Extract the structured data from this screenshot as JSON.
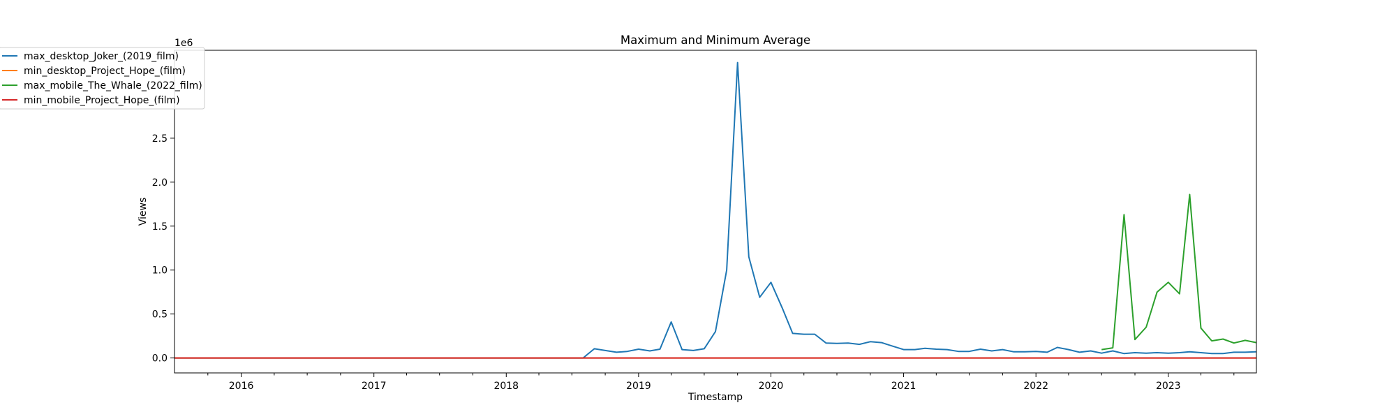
{
  "chart_data": {
    "type": "line",
    "title": "Maximum and Minimum Average",
    "xlabel": "Timestamp",
    "ylabel": "Views",
    "y_offset_label": "1e6",
    "xlim": [
      "2015-07-01",
      "2023-09-01"
    ],
    "ylim": [
      -170000,
      3500000
    ],
    "x_ticks": [
      "2016-01-01",
      "2017-01-01",
      "2018-01-01",
      "2019-01-01",
      "2020-01-01",
      "2021-01-01",
      "2022-01-01",
      "2023-01-01"
    ],
    "x_tick_labels": [
      "2016",
      "2017",
      "2018",
      "2019",
      "2020",
      "2021",
      "2022",
      "2023"
    ],
    "y_ticks": [
      0,
      500000,
      1000000,
      1500000,
      2000000,
      2500000
    ],
    "y_tick_labels": [
      "0.0",
      "0.5",
      "1.0",
      "1.5",
      "2.0",
      "2.5"
    ],
    "grid": false,
    "legend_position": "upper-left",
    "series": [
      {
        "name": "max_desktop_Joker_(2019_film)",
        "color": "#1f77b4",
        "points": [
          [
            "2015-07-01",
            0
          ],
          [
            "2016-01-01",
            0
          ],
          [
            "2017-01-01",
            0
          ],
          [
            "2018-01-01",
            0
          ],
          [
            "2018-08-01",
            0
          ],
          [
            "2018-09-01",
            105000
          ],
          [
            "2018-10-01",
            85000
          ],
          [
            "2018-11-01",
            65000
          ],
          [
            "2018-12-01",
            75000
          ],
          [
            "2019-01-01",
            100000
          ],
          [
            "2019-02-01",
            80000
          ],
          [
            "2019-03-01",
            100000
          ],
          [
            "2019-04-01",
            410000
          ],
          [
            "2019-05-01",
            95000
          ],
          [
            "2019-06-01",
            85000
          ],
          [
            "2019-07-01",
            105000
          ],
          [
            "2019-08-01",
            300000
          ],
          [
            "2019-09-01",
            1000000
          ],
          [
            "2019-10-01",
            3360000
          ],
          [
            "2019-11-01",
            1150000
          ],
          [
            "2019-12-01",
            690000
          ],
          [
            "2020-01-01",
            860000
          ],
          [
            "2020-02-01",
            570000
          ],
          [
            "2020-03-01",
            280000
          ],
          [
            "2020-04-01",
            270000
          ],
          [
            "2020-05-01",
            270000
          ],
          [
            "2020-06-01",
            170000
          ],
          [
            "2020-07-01",
            165000
          ],
          [
            "2020-08-01",
            170000
          ],
          [
            "2020-09-01",
            155000
          ],
          [
            "2020-10-01",
            185000
          ],
          [
            "2020-11-01",
            175000
          ],
          [
            "2020-12-01",
            135000
          ],
          [
            "2021-01-01",
            95000
          ],
          [
            "2021-02-01",
            95000
          ],
          [
            "2021-03-01",
            110000
          ],
          [
            "2021-04-01",
            100000
          ],
          [
            "2021-05-01",
            95000
          ],
          [
            "2021-06-01",
            75000
          ],
          [
            "2021-07-01",
            75000
          ],
          [
            "2021-08-01",
            100000
          ],
          [
            "2021-09-01",
            80000
          ],
          [
            "2021-10-01",
            95000
          ],
          [
            "2021-11-01",
            70000
          ],
          [
            "2021-12-01",
            70000
          ],
          [
            "2022-01-01",
            75000
          ],
          [
            "2022-02-01",
            65000
          ],
          [
            "2022-03-01",
            120000
          ],
          [
            "2022-04-01",
            95000
          ],
          [
            "2022-05-01",
            65000
          ],
          [
            "2022-06-01",
            80000
          ],
          [
            "2022-07-01",
            55000
          ],
          [
            "2022-08-01",
            80000
          ],
          [
            "2022-09-01",
            50000
          ],
          [
            "2022-10-01",
            60000
          ],
          [
            "2022-11-01",
            55000
          ],
          [
            "2022-12-01",
            60000
          ],
          [
            "2023-01-01",
            55000
          ],
          [
            "2023-02-01",
            60000
          ],
          [
            "2023-03-01",
            70000
          ],
          [
            "2023-04-01",
            60000
          ],
          [
            "2023-05-01",
            50000
          ],
          [
            "2023-06-01",
            50000
          ],
          [
            "2023-07-01",
            65000
          ],
          [
            "2023-08-01",
            65000
          ],
          [
            "2023-09-01",
            70000
          ]
        ]
      },
      {
        "name": "min_desktop_Project_Hope_(film)",
        "color": "#ff7f0e",
        "points": [
          [
            "2015-07-01",
            0
          ],
          [
            "2023-09-01",
            0
          ]
        ]
      },
      {
        "name": "max_mobile_The_Whale_(2022_film)",
        "color": "#2ca02c",
        "points": [
          [
            "2022-07-01",
            95000
          ],
          [
            "2022-08-01",
            115000
          ],
          [
            "2022-09-01",
            1630000
          ],
          [
            "2022-10-01",
            210000
          ],
          [
            "2022-11-01",
            350000
          ],
          [
            "2022-12-01",
            750000
          ],
          [
            "2023-01-01",
            860000
          ],
          [
            "2023-02-01",
            730000
          ],
          [
            "2023-03-01",
            1860000
          ],
          [
            "2023-04-01",
            340000
          ],
          [
            "2023-05-01",
            195000
          ],
          [
            "2023-06-01",
            215000
          ],
          [
            "2023-07-01",
            170000
          ],
          [
            "2023-08-01",
            200000
          ],
          [
            "2023-09-01",
            175000
          ]
        ]
      },
      {
        "name": "min_mobile_Project_Hope_(film)",
        "color": "#d62728",
        "points": [
          [
            "2015-07-01",
            0
          ],
          [
            "2023-09-01",
            0
          ]
        ]
      }
    ]
  }
}
